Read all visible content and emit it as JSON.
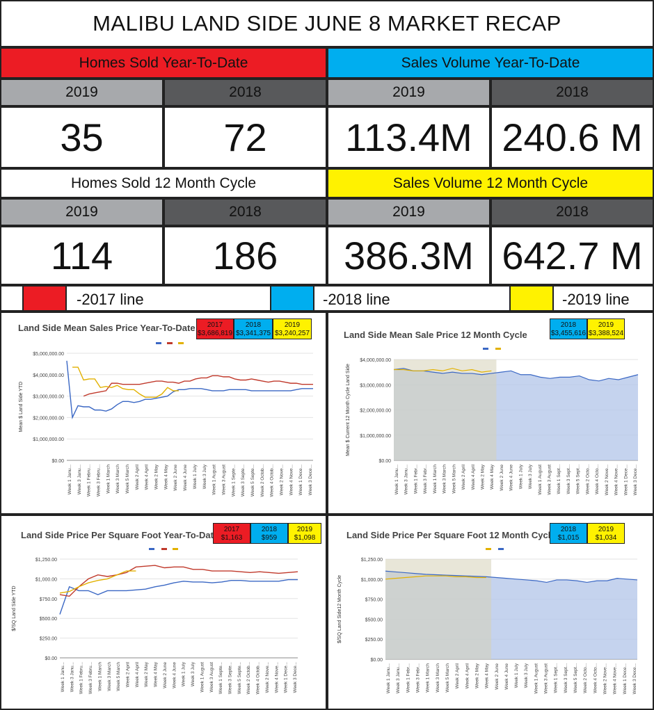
{
  "title": "MALIBU LAND SIDE JUNE 8 MARKET RECAP",
  "colors": {
    "red": "#ec1c24",
    "blue": "#00aeef",
    "yellow": "#fff200",
    "light_gray": "#a7a9ac",
    "dark_gray": "#58595b",
    "line_red": "#c0392b",
    "line_blue": "#3a67c4",
    "line_yellow": "#e2b100"
  },
  "stats": {
    "homes_ytd": {
      "label": "Homes Sold Year-To-Date",
      "y1": "2019",
      "y2": "2018",
      "v1": "35",
      "v2": "72"
    },
    "volume_ytd": {
      "label": "Sales Volume Year-To-Date",
      "y1": "2019",
      "y2": "2018",
      "v1": "113.4M",
      "v2": "240.6 M"
    },
    "homes_12": {
      "label": "Homes Sold 12 Month Cycle",
      "y1": "2019",
      "y2": "2018",
      "v1": "114",
      "v2": "186"
    },
    "volume_12": {
      "label": "Sales Volume 12 Month Cycle",
      "y1": "2019",
      "y2": "2018",
      "v1": "386.3M",
      "v2": "642.7 M"
    }
  },
  "legend": {
    "l2017": "-2017 line",
    "l2018": "-2018 line",
    "l2019": "-2019 line"
  },
  "panels": {
    "p1": {
      "title": "Land Side Mean Sales Price Year-To-Date",
      "b1y": "2017",
      "b1v": "$3,686,819",
      "b2y": "2018",
      "b2v": "$3,341,375",
      "b3y": "2019",
      "b3v": "$3,240,257"
    },
    "p2": {
      "title": "Land Side Mean Sale Price 12 Month Cycle",
      "b1y": "2018",
      "b1v": "$3,455,616",
      "b2y": "2019",
      "b2v": "$3,388,524"
    },
    "p3": {
      "title": "Land Side Price Per Square Foot Year-To-Date",
      "b1y": "2017",
      "b1v": "$1,163",
      "b2y": "2018",
      "b2v": "$959",
      "b3y": "2019",
      "b3v": "$1,098"
    },
    "p4": {
      "title": "Land Side Price Per Square Foot 12 Month Cycle",
      "b1y": "2018",
      "b1v": "$1,015",
      "b2y": "2019",
      "b2v": "$1,034"
    }
  },
  "chart_data": [
    {
      "type": "line",
      "title": "Land Side Mean Sales Price Year-To-Date",
      "ylabel": "Mean $ Land Side YTD",
      "ylim": [
        0,
        5000000
      ],
      "yticks": [
        "$0.00",
        "$1,000,000.00",
        "$2,000,000.00",
        "$3,000,000.00",
        "$4,000,000.00",
        "$5,000,000.00"
      ],
      "xticks": [
        "Week 1 Janu...",
        "Week 3 Janu...",
        "Week 1 Febru...",
        "Week 3 Febru...",
        "Week 1 March",
        "Week 3 March",
        "Week 5 March",
        "Week 2 April",
        "Week 4 April",
        "Week 2 May",
        "Week 4 May",
        "Week 2 June",
        "Week 4 June",
        "Week 1 July",
        "Week 3 July",
        "Week 1 August",
        "Week 3 August",
        "Week 1 Septe...",
        "Week 3 Septe...",
        "Week 5 Septe...",
        "Week 2 Octob...",
        "Week 4 Octob...",
        "Week 2 Nove...",
        "Week 4 Nove...",
        "Week 1 Dece...",
        "Week 3 Dece..."
      ],
      "series": [
        {
          "color": "line_blue",
          "values": [
            4650000,
            2000000,
            2550000,
            2500000,
            2500000,
            2350000,
            2350000,
            2300000,
            2400000,
            2600000,
            2750000,
            2750000,
            2700000,
            2750000,
            2850000,
            2850000,
            2900000,
            2950000,
            3000000,
            3200000,
            3300000,
            3300000,
            3350000,
            3350000,
            3350000,
            3300000,
            3250000,
            3250000,
            3250000,
            3300000,
            3300000,
            3300000,
            3300000,
            3250000,
            3250000,
            3250000,
            3250000,
            3250000,
            3250000,
            3250000,
            3250000,
            3300000,
            3350000,
            3350000,
            3350000
          ]
        },
        {
          "color": "line_red",
          "values": [
            null,
            null,
            null,
            3000000,
            3100000,
            3150000,
            3200000,
            3250000,
            3600000,
            3600000,
            3550000,
            3550000,
            3550000,
            3550000,
            3600000,
            3650000,
            3700000,
            3700000,
            3650000,
            3650000,
            3600000,
            3700000,
            3700000,
            3800000,
            3850000,
            3850000,
            3950000,
            3950000,
            3900000,
            3900000,
            3800000,
            3750000,
            3750000,
            3800000,
            3750000,
            3700000,
            3650000,
            3700000,
            3700000,
            3650000,
            3600000,
            3600000,
            3550000,
            3550000,
            3550000
          ]
        },
        {
          "color": "line_yellow",
          "values": [
            null,
            4350000,
            4350000,
            3750000,
            3800000,
            3800000,
            3400000,
            3450000,
            3400000,
            3500000,
            3350000,
            3300000,
            3300000,
            3100000,
            2950000,
            2950000,
            2950000,
            3100000,
            3400000,
            3250000,
            3250000
          ]
        }
      ]
    },
    {
      "type": "area",
      "title": "Land Side Mean Sale Price 12 Month Cycle",
      "ylabel": "Mean $ Current 12 Month Cycle Land Side",
      "ylim": [
        0,
        4000000
      ],
      "yticks": [
        "$0.00",
        "$1,000,000.00",
        "$2,000,000.00",
        "$3,000,000.00",
        "$4,000,000.00"
      ],
      "xticks": [
        "Week 1 Janu...",
        "Week 3 Janu...",
        "Week 1 Febr...",
        "Week 3 Febr...",
        "Week 1 March",
        "Week 3 March",
        "Week 5 March",
        "Week 2 April",
        "Week 4 April",
        "Week 2 May",
        "Week 4 May",
        "Week 2 June",
        "Week 4 June",
        "Week 1 July",
        "Week 3 July",
        "Week 1 August",
        "Week 3 August",
        "Week 1 Sept...",
        "Week 3 Sept...",
        "Week 5 Sept...",
        "Week 2 Octo...",
        "Week 4 Octo...",
        "Week 2 Nove...",
        "Week 4 Nove...",
        "Week 1 Dece...",
        "Week 3 Dece..."
      ],
      "series": [
        {
          "color": "line_blue",
          "values": [
            3600000,
            3650000,
            3550000,
            3550000,
            3500000,
            3450000,
            3500000,
            3450000,
            3450000,
            3400000,
            3450000,
            3500000,
            3550000,
            3400000,
            3400000,
            3300000,
            3250000,
            3300000,
            3300000,
            3350000,
            3200000,
            3150000,
            3250000,
            3200000,
            3300000,
            3400000
          ]
        },
        {
          "color": "line_yellow",
          "values": [
            3600000,
            3600000,
            3550000,
            3550000,
            3600000,
            3550000,
            3650000,
            3550000,
            3600000,
            3500000,
            3550000
          ]
        }
      ]
    },
    {
      "type": "line",
      "title": "Land Side Price Per Square Foot Year-To-Date",
      "ylabel": "$/SQ Land Side YTD",
      "ylim": [
        0,
        1250
      ],
      "yticks": [
        "$0.00",
        "$250.00",
        "$500.00",
        "$750.00",
        "$1,000.00",
        "$1,250.00"
      ],
      "xticks": [
        "Week 1 Janu...",
        "Week 3 Janu...",
        "Week 1 Febru...",
        "Week 3 Febru...",
        "Week 1 March",
        "Week 3 March",
        "Week 5 March",
        "Week 2 April",
        "Week 4 April",
        "Week 2 May",
        "Week 4 May",
        "Week 2 June",
        "Week 4 June",
        "Week 1 July",
        "Week 3 July",
        "Week 1 August",
        "Week 3 August",
        "Week 1 Septe...",
        "Week 3 Septe...",
        "Week 5 Septe...",
        "Week 2 Octob...",
        "Week 4 Octob...",
        "Week 2 Nove...",
        "Week 4 Nove...",
        "Week 1 Dece...",
        "Week 3 Dece..."
      ],
      "series": [
        {
          "color": "line_blue",
          "values": [
            550,
            900,
            850,
            850,
            800,
            850,
            850,
            850,
            860,
            870,
            900,
            920,
            950,
            970,
            960,
            960,
            950,
            960,
            980,
            980,
            970,
            970,
            970,
            970,
            990,
            990
          ]
        },
        {
          "color": "line_red",
          "values": [
            800,
            780,
            900,
            1000,
            1050,
            1030,
            1050,
            1080,
            1150,
            1160,
            1170,
            1140,
            1150,
            1150,
            1120,
            1120,
            1100,
            1100,
            1100,
            1090,
            1080,
            1090,
            1080,
            1070,
            1080,
            1090
          ]
        },
        {
          "color": "line_yellow",
          "values": [
            820,
            840,
            900,
            950,
            980,
            1000,
            1050,
            1100,
            1100
          ]
        }
      ]
    },
    {
      "type": "area",
      "title": "Land Side Price Per Square Foot 12 Month Cycle",
      "ylabel": "$/SQ Land Side12 Month Cycle",
      "ylim": [
        0,
        1250
      ],
      "yticks": [
        "$0.00",
        "$250.00",
        "$500.00",
        "$750.00",
        "$1,000.00",
        "$1,250.00"
      ],
      "xticks": [
        "Week 1 Janu...",
        "Week 3 Janu...",
        "Week 1 Febr...",
        "Week 3 Febr...",
        "Week 1 March",
        "Week 3 March",
        "Week 5 March",
        "Week 2 April",
        "Week 4 April",
        "Week 2 May",
        "Week 4 May",
        "Week 2 June",
        "Week 4 June",
        "Week 1 July",
        "Week 3 July",
        "Week 1 August",
        "Week 3 August",
        "Week 1 Sept...",
        "Week 3 Sept...",
        "Week 5 Sept...",
        "Week 2 Octo...",
        "Week 4 Octo...",
        "Week 2 Nove...",
        "Week 4 Nove...",
        "Week 1 Dece...",
        "Week 3 Dece..."
      ],
      "series": [
        {
          "color": "line_blue",
          "values": [
            1100,
            1090,
            1080,
            1070,
            1060,
            1055,
            1050,
            1045,
            1040,
            1035,
            1030,
            1020,
            1010,
            1000,
            990,
            980,
            960,
            990,
            990,
            980,
            960,
            980,
            980,
            1010,
            1000,
            990
          ]
        },
        {
          "color": "line_yellow",
          "values": [
            1000,
            1010,
            1020,
            1030,
            1040,
            1040,
            1040,
            1030,
            1030,
            1020,
            1020
          ]
        }
      ]
    }
  ]
}
